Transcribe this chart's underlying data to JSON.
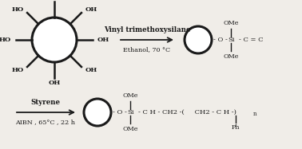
{
  "bg_color": "#f0ede8",
  "line_color": "#1a1a1a",
  "text_color": "#1a1a1a",
  "reaction1": {
    "label_top": "Vinyl trimethoxysilane",
    "label_bottom": "Ethanol, 70 °C"
  },
  "reaction2": {
    "label_top": "Styrene",
    "label_bottom": "AIBN , 65°C , 22 h"
  },
  "fontsize_chain": 6.0,
  "fontsize_bold": 6.2,
  "fontsize_label": 5.8,
  "fontsize_oh": 6.0
}
